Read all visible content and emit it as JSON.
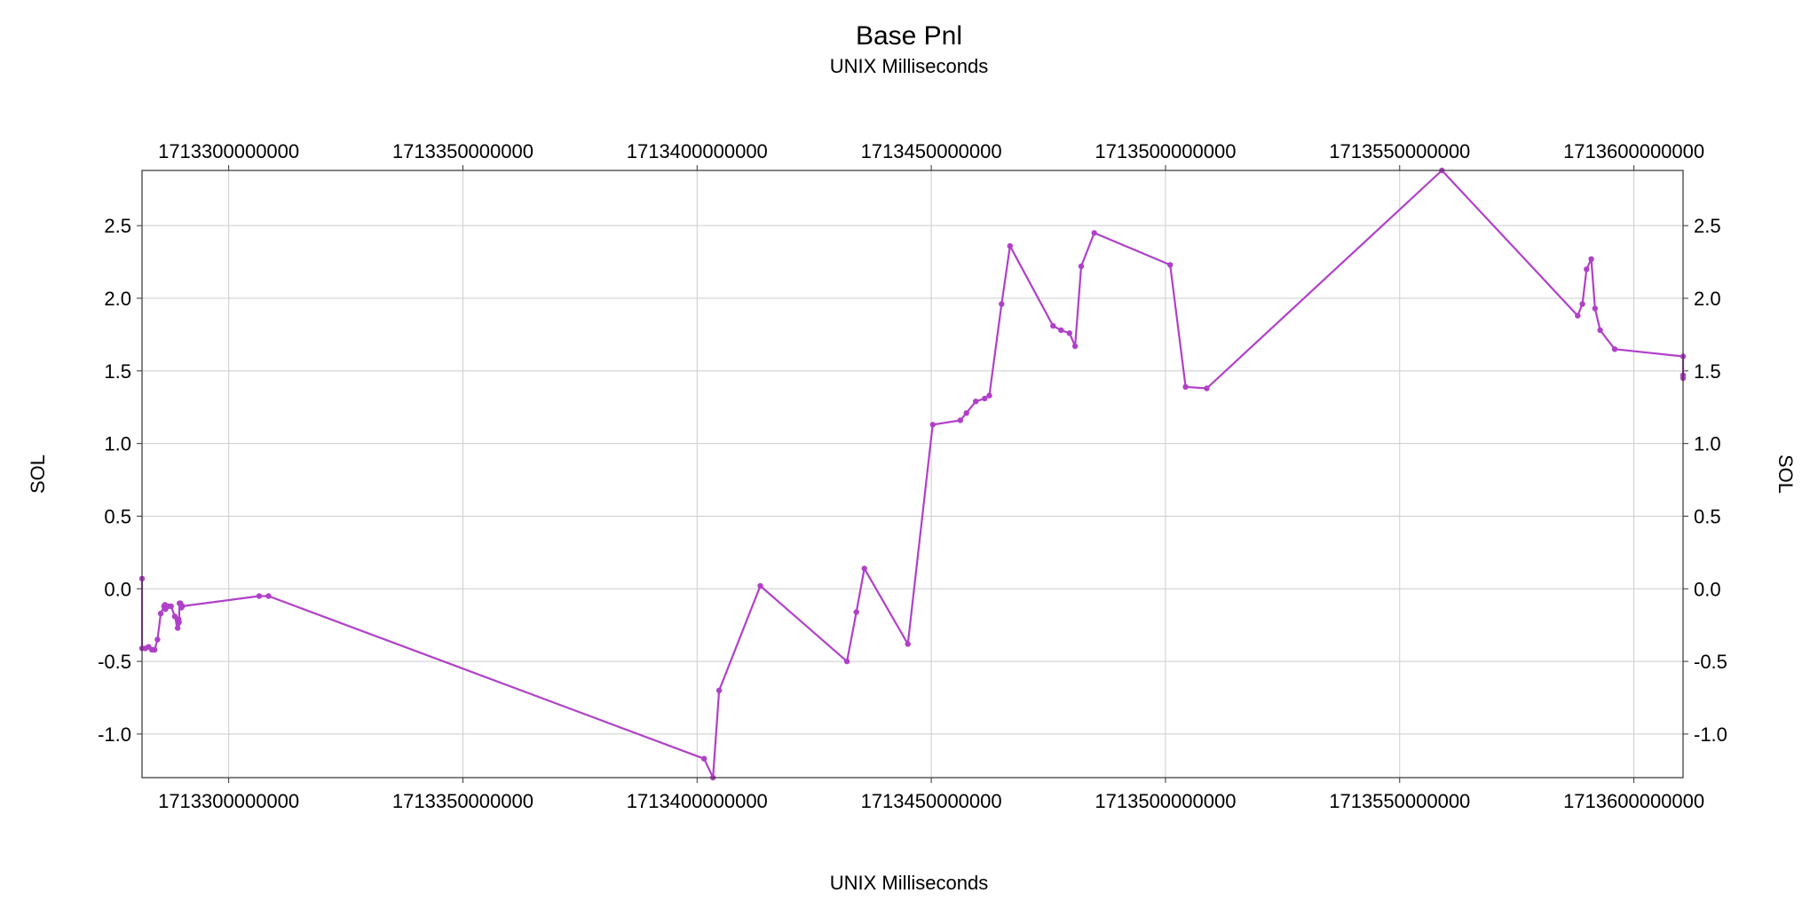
{
  "chart_data": {
    "type": "line",
    "title": "Base Pnl",
    "subtitle": "UNIX Milliseconds",
    "xlabel": "UNIX Milliseconds",
    "ylabel": "SOL",
    "ylabel_right": "SOL",
    "xlim": [
      1713281500000,
      1713610500000
    ],
    "ylim": [
      -1.3,
      2.88
    ],
    "x_ticks": [
      1713300000000,
      1713350000000,
      1713400000000,
      1713450000000,
      1713500000000,
      1713550000000,
      1713600000000
    ],
    "x_tick_labels": [
      "1713300000000",
      "1713350000000",
      "1713400000000",
      "1713450000000",
      "1713500000000",
      "1713550000000",
      "1713600000000"
    ],
    "y_ticks": [
      -1.0,
      -0.5,
      0.0,
      0.5,
      1.0,
      1.5,
      2.0,
      2.5
    ],
    "y_tick_labels": [
      "-1.0",
      "-0.5",
      "0.0",
      "0.5",
      "1.0",
      "1.5",
      "2.0",
      "2.5"
    ],
    "grid": true,
    "line_color": "#b040c8",
    "series": [
      {
        "name": "",
        "x": [
          1713281500000,
          1713281500000,
          1713282200000,
          1713282900000,
          1713283600000,
          1713284200000,
          1713284800000,
          1713285500000,
          1713286200000,
          1713286400000,
          1713286500000,
          1713286700000,
          1713287100000,
          1713287700000,
          1713288500000,
          1713289100000,
          1713289200000,
          1713289300000,
          1713289400000,
          1713289500000,
          1713289700000,
          1713289900000,
          1713290000000,
          1713290100000,
          1713306500000,
          1713308500000,
          1713401500000,
          1713403400000,
          1713404700000,
          1713413500000,
          1713432000000,
          1713434000000,
          1713435700000,
          1713445000000,
          1713450300000,
          1713456200000,
          1713457500000,
          1713459500000,
          1713461400000,
          1713462400000,
          1713465000000,
          1713466800000,
          1713476000000,
          1713477700000,
          1713479500000,
          1713480700000,
          1713482000000,
          1713484800000,
          1713501000000,
          1713504300000,
          1713508800000,
          1713559000000,
          1713588000000,
          1713589000000,
          1713589900000,
          1713590900000,
          1713591700000,
          1713592800000,
          1713595900000,
          1713618500000,
          1713627500000,
          1713630000000
        ],
        "y": [
          0.07,
          -0.41,
          -0.41,
          -0.4,
          -0.42,
          -0.42,
          -0.35,
          -0.17,
          -0.12,
          -0.11,
          -0.14,
          -0.12,
          -0.12,
          -0.12,
          -0.19,
          -0.27,
          -0.24,
          -0.21,
          -0.23,
          -0.1,
          -0.1,
          -0.13,
          -0.12,
          -0.12,
          -0.05,
          -0.05,
          -1.17,
          -1.31,
          -0.7,
          0.02,
          -0.5,
          -0.16,
          0.14,
          -0.38,
          1.13,
          1.16,
          1.21,
          1.29,
          1.31,
          1.33,
          1.96,
          2.36,
          1.81,
          1.78,
          1.76,
          1.67,
          2.22,
          2.45,
          2.23,
          1.39,
          1.38,
          2.88,
          1.88,
          1.96,
          2.2,
          2.27,
          1.93,
          1.78,
          1.65,
          1.6,
          1.47,
          1.45
        ]
      }
    ]
  }
}
